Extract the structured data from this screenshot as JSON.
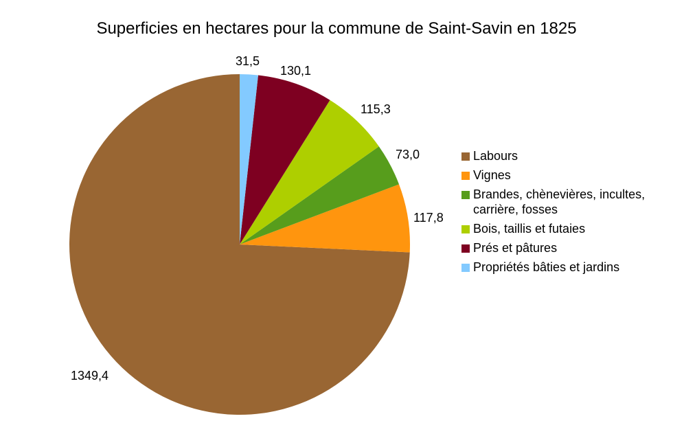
{
  "chart_data": {
    "type": "pie",
    "title": "Superficies en hectares pour la commune de Saint-Savin en 1825",
    "categories": [
      "Labours",
      "Vignes",
      "Brandes, chènevières, incultes, carrière, fosses",
      "Bois, taillis et futaies",
      "Prés et pâtures",
      "Propriétés bâties et jardins"
    ],
    "values": [
      1349.4,
      117.8,
      73.0,
      115.3,
      130.1,
      31.5
    ],
    "value_labels": [
      "1349,4",
      "117,8",
      "73,0",
      "115,3",
      "130,1",
      "31,5"
    ],
    "colors": [
      "#996633",
      "#ff950e",
      "#579d1c",
      "#aecf00",
      "#7e0021",
      "#83caff"
    ],
    "legend_position": "right",
    "direction": "counterclockwise-from-top"
  },
  "legend": {
    "items": [
      {
        "label": "Labours",
        "color": "#996633"
      },
      {
        "label": "Vignes",
        "color": "#ff950e"
      },
      {
        "label": "Brandes, chènevières, incultes, carrière, fosses",
        "color": "#579d1c"
      },
      {
        "label": "Bois, taillis et futaies",
        "color": "#aecf00"
      },
      {
        "label": "Prés et pâtures",
        "color": "#7e0021"
      },
      {
        "label": "Propriétés bâties et jardins",
        "color": "#83caff"
      }
    ]
  }
}
